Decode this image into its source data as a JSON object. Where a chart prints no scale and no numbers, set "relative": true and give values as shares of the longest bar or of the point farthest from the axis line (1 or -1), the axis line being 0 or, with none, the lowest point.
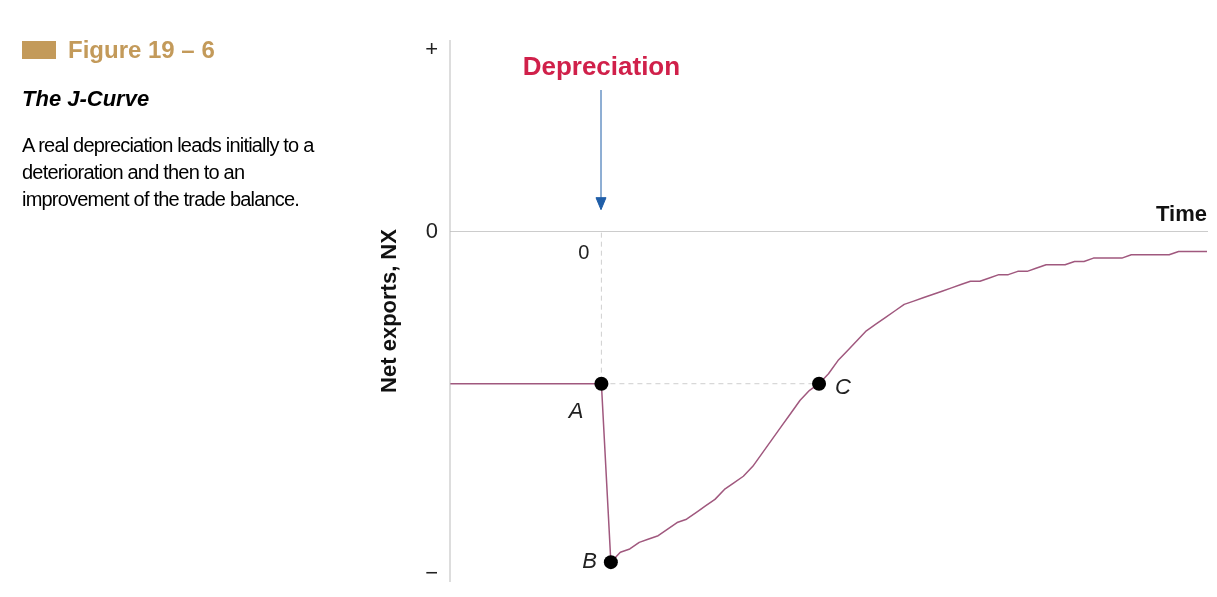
{
  "chart_data": {
    "type": "line",
    "title": "Figure 19 – 6",
    "subtitle": "The J-Curve",
    "xlabel": "Time",
    "ylabel": "Net exports, NX",
    "relative": true,
    "grid": false,
    "legend": false,
    "categories": [
      null,
      null,
      null,
      null,
      null,
      null,
      null,
      null,
      null,
      null,
      null,
      null,
      null,
      null,
      null,
      null,
      null,
      null,
      null,
      null,
      null,
      null,
      null,
      null,
      null,
      null,
      null,
      null,
      null,
      null,
      null,
      null,
      null,
      null,
      null,
      null,
      null,
      null,
      null,
      null,
      null,
      null,
      null,
      null,
      null,
      null,
      null,
      null,
      null,
      null,
      null,
      null,
      null,
      null,
      null,
      null,
      null,
      null,
      null,
      null,
      null,
      null,
      null,
      null,
      null,
      null,
      null,
      null,
      null,
      null,
      null,
      null,
      null,
      null,
      null,
      null,
      null,
      null,
      null,
      null,
      null
    ],
    "series": [
      {
        "color": "#a0587e",
        "marker": "none",
        "values": [
          -0.46,
          -0.46,
          -0.46,
          -0.46,
          -0.46,
          -0.46,
          -0.46,
          -0.46,
          -0.46,
          -0.46,
          -0.46,
          -0.46,
          -0.46,
          -0.46,
          -0.46,
          -0.46,
          -0.46,
          -1,
          -0.97,
          -0.96,
          -0.94,
          -0.93,
          -0.92,
          -0.9,
          -0.88,
          -0.87,
          -0.85,
          -0.83,
          -0.81,
          -0.78,
          -0.76,
          -0.74,
          -0.71,
          -0.67,
          -0.63,
          -0.59,
          -0.55,
          -0.51,
          -0.48,
          -0.46,
          -0.43,
          -0.39,
          -0.36,
          -0.33,
          -0.3,
          -0.28,
          -0.26,
          -0.24,
          -0.22,
          -0.21,
          -0.2,
          -0.19,
          -0.18,
          -0.17,
          -0.16,
          -0.15,
          -0.15,
          -0.14,
          -0.13,
          -0.13,
          -0.12,
          -0.12,
          -0.11,
          -0.1,
          -0.1,
          -0.1,
          -0.09,
          -0.09,
          -0.08,
          -0.08,
          -0.08,
          -0.08,
          -0.07,
          -0.07,
          -0.07,
          -0.07,
          -0.07,
          -0.06,
          -0.06,
          -0.06,
          -0.06
        ]
      }
    ],
    "annotations": [
      "A real depreciation leads initially to a deterioration and then to an improvement of the trade balance.",
      "Depreciation",
      "+",
      "0",
      "−",
      "A",
      "B",
      "C",
      "0"
    ]
  }
}
